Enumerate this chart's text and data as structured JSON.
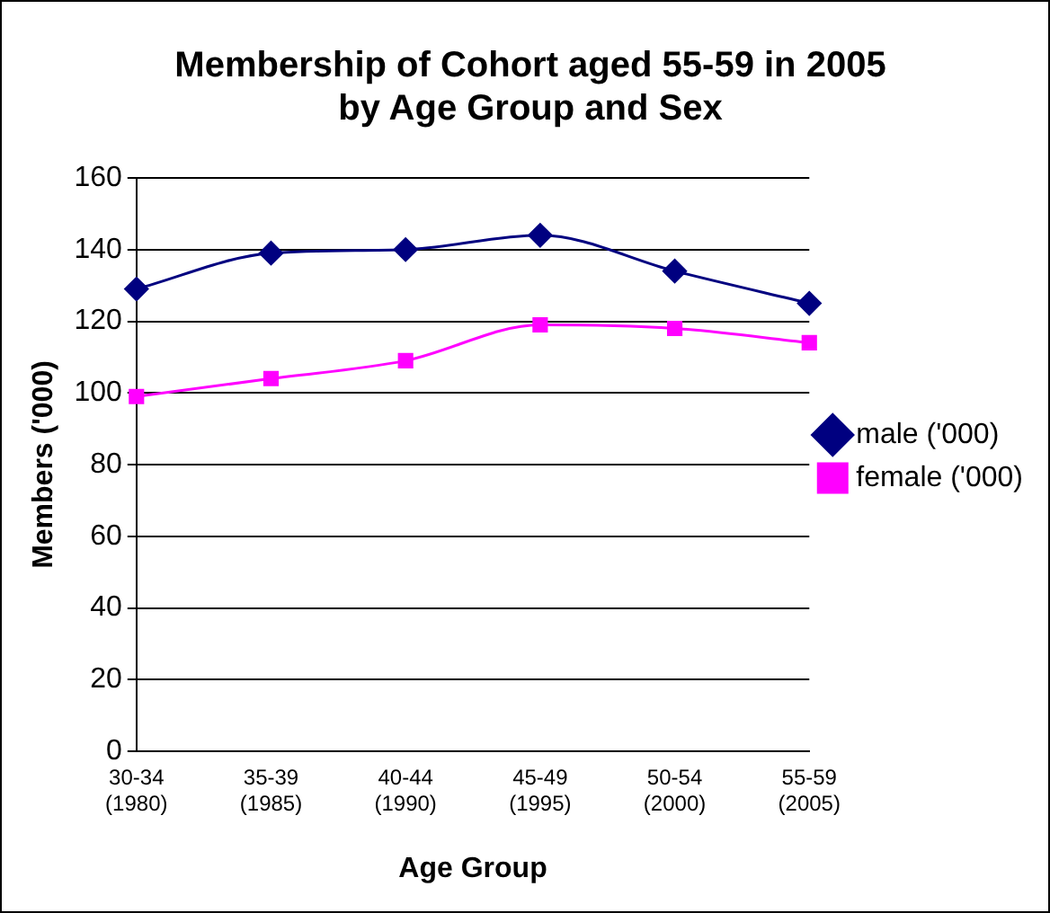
{
  "chart_data": {
    "type": "line",
    "title": "Membership of Cohort aged 55-59 in 2005\nby Age Group and Sex",
    "xlabel": "Age Group",
    "ylabel": "Members ('000)",
    "categories": [
      "30-34\n(1980)",
      "35-39\n(1985)",
      "40-44\n(1990)",
      "45-49\n(1995)",
      "50-54\n(2000)",
      "55-59\n(2005)"
    ],
    "series": [
      {
        "name": "male ('000)",
        "color": "#000080",
        "marker": "diamond",
        "values": [
          129,
          139,
          140,
          144,
          134,
          125
        ]
      },
      {
        "name": "female ('000)",
        "color": "#ff00ff",
        "marker": "square",
        "values": [
          99,
          104,
          109,
          119,
          118,
          114
        ]
      }
    ],
    "ylim": [
      0,
      160
    ],
    "yticks": [
      0,
      20,
      40,
      60,
      80,
      100,
      120,
      140,
      160
    ],
    "grid": "y",
    "legend": "right"
  }
}
